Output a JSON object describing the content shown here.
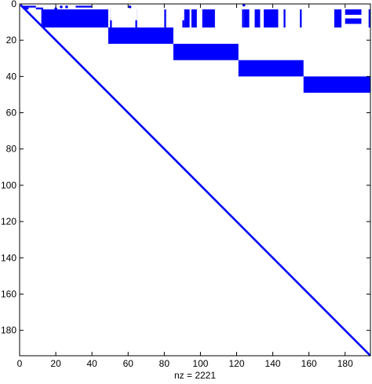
{
  "chart_data": {
    "type": "scatter",
    "plot_kind": "sparsity pattern (spy)",
    "title": "",
    "xlabel": "nz = 2221",
    "ylabel": "",
    "xlim": [
      0,
      194
    ],
    "ylim": [
      0,
      194
    ],
    "y_axis_direction": "reversed (0 at top)",
    "x_ticks": [
      0,
      20,
      40,
      60,
      80,
      100,
      120,
      140,
      160,
      180
    ],
    "y_ticks": [
      0,
      20,
      40,
      60,
      80,
      100,
      120,
      140,
      160,
      180
    ],
    "marker_color": "#0000ff",
    "grid": false,
    "legend": "none",
    "diagonal": {
      "from": 1,
      "to": 194
    },
    "dense_blocks": [
      {
        "cols": [
          13,
          48
        ],
        "rows": [
          3,
          12
        ]
      },
      {
        "cols": [
          49,
          84
        ],
        "rows": [
          13,
          21
        ]
      },
      {
        "cols": [
          85,
          120
        ],
        "rows": [
          22,
          30
        ]
      },
      {
        "cols": [
          121,
          156
        ],
        "rows": [
          31,
          39
        ]
      },
      {
        "cols": [
          157,
          193
        ],
        "rows": [
          40,
          48
        ]
      }
    ],
    "row_segments": [
      {
        "row": 1,
        "cols": [
          1,
          8
        ]
      },
      {
        "row": 1,
        "cols": [
          31,
          39
        ]
      },
      {
        "row": 2,
        "cols": [
          2,
          4
        ]
      },
      {
        "row": 2,
        "cols": [
          9,
          11
        ]
      }
    ],
    "column_segments": [
      {
        "col": 12,
        "rows": [
          2,
          12
        ]
      },
      {
        "col": 50,
        "rows": [
          3,
          12
        ]
      },
      {
        "col": 64,
        "rows": [
          3,
          12
        ]
      },
      {
        "col": 80,
        "rows": [
          3,
          12
        ]
      },
      {
        "col": 90,
        "rows": [
          3,
          12
        ]
      },
      {
        "col": 123,
        "rows": [
          3,
          12
        ]
      },
      {
        "col": 140,
        "rows": [
          3,
          12
        ]
      },
      {
        "col": 146,
        "rows": [
          3,
          12
        ]
      },
      {
        "col": 155,
        "rows": [
          3,
          12
        ]
      },
      {
        "col": 193,
        "rows": [
          3,
          12
        ]
      }
    ],
    "outlier_points": [
      {
        "x": 23,
        "y": 1
      },
      {
        "x": 20,
        "y": 2
      },
      {
        "x": 26,
        "y": 1
      },
      {
        "x": 61,
        "y": 1
      },
      {
        "x": 124,
        "y": 0
      }
    ],
    "white_gaps": [
      {
        "cols": [
          50,
          56
        ],
        "rows": [
          1,
          8
        ]
      },
      {
        "cols": [
          58,
          64
        ],
        "rows": [
          1,
          8
        ]
      },
      {
        "cols": [
          66,
          71
        ],
        "rows": [
          1,
          8
        ]
      },
      {
        "cols": [
          82,
          90
        ],
        "rows": [
          1,
          8
        ]
      },
      {
        "cols": [
          157,
          165
        ],
        "rows": [
          1,
          8
        ]
      }
    ],
    "top_clusters": [
      {
        "cols": [
          91,
          93
        ],
        "rows": [
          3,
          12
        ]
      },
      {
        "cols": [
          95,
          97
        ],
        "rows": [
          3,
          12
        ]
      },
      {
        "cols": [
          101,
          107
        ],
        "rows": [
          3,
          12
        ]
      },
      {
        "cols": [
          124,
          126
        ],
        "rows": [
          3,
          12
        ]
      },
      {
        "cols": [
          130,
          132
        ],
        "rows": [
          3,
          12
        ]
      },
      {
        "cols": [
          135,
          142
        ],
        "rows": [
          3,
          12
        ]
      },
      {
        "cols": [
          174,
          177
        ],
        "rows": [
          3,
          12
        ]
      },
      {
        "cols": [
          180,
          188
        ],
        "rows": [
          3,
          5
        ]
      },
      {
        "cols": [
          180,
          188
        ],
        "rows": [
          8,
          10
        ]
      }
    ]
  }
}
